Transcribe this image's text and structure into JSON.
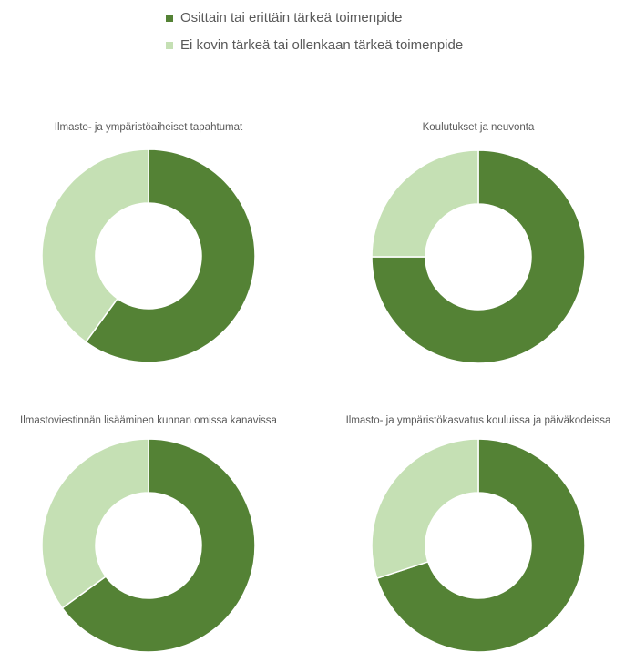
{
  "legend": [
    {
      "name": "Osittain tai erittäin tärkeä toimenpide",
      "color": "#548235"
    },
    {
      "name": "Ei kovin tärkeä tai ollenkaan tärkeä toimenpide",
      "color": "#c5e0b4"
    }
  ],
  "chart_data": [
    {
      "type": "pie",
      "donut": true,
      "title": "Ilmasto- ja ympäristöaiheiset tapahtumat",
      "values": [
        60,
        40
      ]
    },
    {
      "type": "pie",
      "donut": true,
      "title": "Koulutukset ja neuvonta",
      "values": [
        75,
        25
      ]
    },
    {
      "type": "pie",
      "donut": true,
      "title": "Ilmastoviestinnän lisääminen kunnan omissa kanavissa",
      "values": [
        65,
        35
      ]
    },
    {
      "type": "pie",
      "donut": true,
      "title": "Ilmasto- ja ympäristökasvatus kouluissa ja päiväkodeissa",
      "values": [
        70,
        30
      ]
    }
  ]
}
